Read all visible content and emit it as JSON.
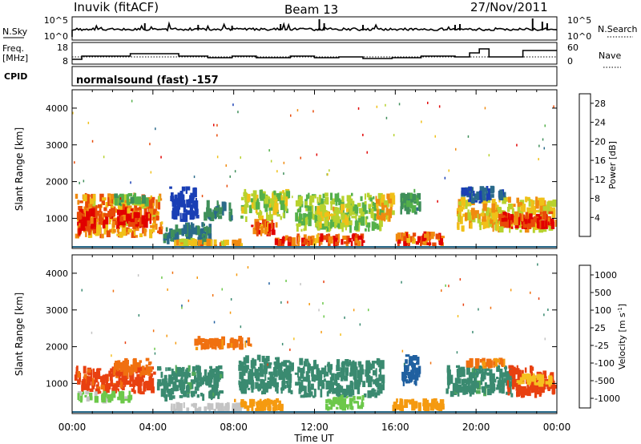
{
  "header": {
    "site": "Inuvik (fitACF)",
    "beam": "Beam 13",
    "date": "27/Nov/2011"
  },
  "strips": {
    "nsky_label": "N.Sky",
    "nsearch_label": "N.Search",
    "nsky_ticks": [
      "10^5",
      "10^0"
    ],
    "freq_label_1": "Freq.",
    "freq_label_2": "[MHz]",
    "freq_ticks": [
      "18",
      "8"
    ],
    "nave_label": "Nave",
    "nave_ticks": [
      "60",
      "0"
    ],
    "cpid_label": "CPID",
    "cpid_text": "normalsound (fast) -157"
  },
  "time_axis": {
    "label": "Time UT",
    "ticks": [
      "00:00",
      "04:00",
      "08:00",
      "12:00",
      "16:00",
      "20:00",
      "00:00"
    ]
  },
  "colors": {
    "ground_scatter": "#bcbcbc",
    "power_scale": [
      "#0018f0",
      "#1a3fb5",
      "#2a6a8a",
      "#3f8f5a",
      "#54b04a",
      "#b7d22e",
      "#f0c018",
      "#f08a10",
      "#e84a08",
      "#e10000"
    ],
    "velocity_scale": [
      "#1a30c0",
      "#2060a0",
      "#3a8a70",
      "#4fa85a",
      "#6cc84a",
      "#c4c4c4",
      "#f6c020",
      "#f59a10",
      "#f07010",
      "#e84010",
      "#e00000"
    ]
  },
  "chart_data": [
    {
      "type": "heatmap",
      "panel": "power",
      "ylabel": "Slant Range [km]",
      "ylim": [
        180,
        4500
      ],
      "yticks": [
        "1000",
        "2000",
        "3000",
        "4000"
      ],
      "xlim": [
        "00:00",
        "24:00"
      ],
      "colorbar_label": "Power [dB]",
      "colorbar_ticks": [
        "4",
        "8",
        "12",
        "16",
        "20",
        "24",
        "28"
      ],
      "colorbar_range": [
        0,
        30
      ],
      "regions": [
        {
          "t0": 0.1,
          "t1": 4.5,
          "r0": 450,
          "r1": 1700,
          "value": 22
        },
        {
          "t0": 0.2,
          "t1": 1.2,
          "r0": 500,
          "r1": 1300,
          "value": 29
        },
        {
          "t0": 1.5,
          "t1": 4.0,
          "r0": 700,
          "r1": 1300,
          "value": 27
        },
        {
          "t0": 2.0,
          "t1": 3.8,
          "r0": 1300,
          "r1": 1700,
          "value": 14
        },
        {
          "t0": 4.5,
          "t1": 7.0,
          "r0": 250,
          "r1": 900,
          "value": 9
        },
        {
          "t0": 5.0,
          "t1": 8.5,
          "r0": 200,
          "r1": 450,
          "value": 21
        },
        {
          "t0": 6.5,
          "t1": 8.0,
          "r0": 900,
          "r1": 1500,
          "value": 10
        },
        {
          "t0": 8.3,
          "t1": 10.8,
          "r0": 900,
          "r1": 1800,
          "value": 16
        },
        {
          "t0": 8.8,
          "t1": 10.2,
          "r0": 500,
          "r1": 1000,
          "value": 24
        },
        {
          "t0": 11.0,
          "t1": 15.5,
          "r0": 600,
          "r1": 1700,
          "value": 15
        },
        {
          "t0": 10.0,
          "t1": 14.5,
          "r0": 200,
          "r1": 600,
          "value": 26
        },
        {
          "t0": 12.0,
          "t1": 13.8,
          "r0": 700,
          "r1": 1400,
          "value": 18
        },
        {
          "t0": 15.0,
          "t1": 16.0,
          "r0": 900,
          "r1": 1700,
          "value": 20
        },
        {
          "t0": 15.8,
          "t1": 18.5,
          "r0": 200,
          "r1": 650,
          "value": 25
        },
        {
          "t0": 16.2,
          "t1": 17.3,
          "r0": 1100,
          "r1": 1800,
          "value": 11
        },
        {
          "t0": 19.0,
          "t1": 24.0,
          "r0": 600,
          "r1": 1600,
          "value": 19
        },
        {
          "t0": 21.0,
          "t1": 24.0,
          "r0": 700,
          "r1": 1200,
          "value": 28
        },
        {
          "t0": 19.2,
          "t1": 21.5,
          "r0": 1400,
          "r1": 1900,
          "value": 6
        },
        {
          "t0": 4.8,
          "t1": 6.3,
          "r0": 900,
          "r1": 1900,
          "value": 5
        }
      ]
    },
    {
      "type": "heatmap",
      "panel": "velocity",
      "ylabel": "Slant Range [km]",
      "ylim": [
        180,
        4500
      ],
      "yticks": [
        "1000",
        "2000",
        "3000",
        "4000"
      ],
      "xlim": [
        "00:00",
        "24:00"
      ],
      "colorbar_label": "Velocity [m s",
      "colorbar_superscript": "-1",
      "colorbar_label_end": "]",
      "colorbar_ticks": [
        "1000",
        "500",
        "100",
        "25",
        "-25",
        "-100",
        "-500",
        "-1000"
      ],
      "regions": [
        {
          "t0": 0.1,
          "t1": 4.2,
          "r0": 700,
          "r1": 1500,
          "value": -300
        },
        {
          "t0": 0.2,
          "t1": 3.0,
          "r0": 450,
          "r1": 800,
          "value": 60
        },
        {
          "t0": 2.0,
          "t1": 4.0,
          "r0": 1200,
          "r1": 1700,
          "value": -150
        },
        {
          "t0": 4.2,
          "t1": 7.5,
          "r0": 500,
          "r1": 1500,
          "value": 300
        },
        {
          "t0": 4.8,
          "t1": 8.5,
          "r0": 200,
          "r1": 500,
          "value": 40
        },
        {
          "t0": 8.2,
          "t1": 11.0,
          "r0": 700,
          "r1": 1800,
          "value": 400
        },
        {
          "t0": 8.0,
          "t1": 10.5,
          "r0": 200,
          "r1": 600,
          "value": -60
        },
        {
          "t0": 11.0,
          "t1": 15.5,
          "r0": 600,
          "r1": 1700,
          "value": 350
        },
        {
          "t0": 12.5,
          "t1": 14.5,
          "r0": 250,
          "r1": 700,
          "value": 80
        },
        {
          "t0": 15.8,
          "t1": 18.5,
          "r0": 200,
          "r1": 600,
          "value": -80
        },
        {
          "t0": 16.3,
          "t1": 17.3,
          "r0": 900,
          "r1": 1800,
          "value": 600
        },
        {
          "t0": 18.5,
          "t1": 22.0,
          "r0": 600,
          "r1": 1500,
          "value": 300
        },
        {
          "t0": 21.5,
          "t1": 24.0,
          "r0": 600,
          "r1": 1500,
          "value": -400
        },
        {
          "t0": 22.0,
          "t1": 23.8,
          "r0": 900,
          "r1": 1300,
          "value": 10
        },
        {
          "t0": 6.0,
          "t1": 9.0,
          "r0": 1900,
          "r1": 2300,
          "value": -120
        },
        {
          "t0": 19.5,
          "t1": 21.5,
          "r0": 1400,
          "r1": 1700,
          "value": -100
        }
      ]
    }
  ]
}
